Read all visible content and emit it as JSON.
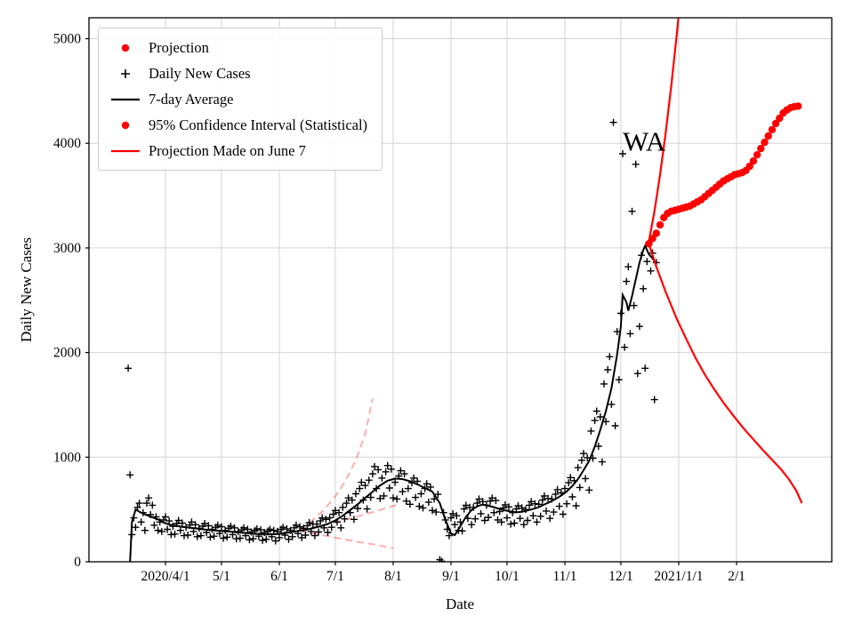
{
  "chart_data": {
    "type": "scatter",
    "xlabel": "Date",
    "ylabel": "Daily New Cases",
    "annotation": {
      "text": "WA",
      "x": "2020-12-02",
      "y": 3930
    },
    "legend": [
      {
        "label": "Projection",
        "marker": "dot",
        "color": "#ff0000"
      },
      {
        "label": "Daily New Cases",
        "marker": "plus",
        "color": "#000000"
      },
      {
        "label": "7-day Average",
        "marker": "line",
        "color": "#000000"
      },
      {
        "label": "95% Confidence Interval (Statistical)",
        "marker": "dot",
        "color": "#ff0000"
      },
      {
        "label": "Projection Made on June 7",
        "marker": "line",
        "color": "#ff0000"
      }
    ],
    "axes": {
      "x": {
        "min": "2020-02-20",
        "max": "2021-03-24",
        "ticks": [
          {
            "date": "2020-04-01",
            "label": "2020/4/1"
          },
          {
            "date": "2020-05-01",
            "label": "5/1"
          },
          {
            "date": "2020-06-01",
            "label": "6/1"
          },
          {
            "date": "2020-07-01",
            "label": "7/1"
          },
          {
            "date": "2020-08-01",
            "label": "8/1"
          },
          {
            "date": "2020-09-01",
            "label": "9/1"
          },
          {
            "date": "2020-10-01",
            "label": "10/1"
          },
          {
            "date": "2020-11-01",
            "label": "11/1"
          },
          {
            "date": "2020-12-01",
            "label": "12/1"
          },
          {
            "date": "2021-01-01",
            "label": "2021/1/1"
          },
          {
            "date": "2021-02-01",
            "label": "2/1"
          }
        ]
      },
      "y": {
        "min": 0,
        "max": 5200,
        "ticks": [
          {
            "value": 0,
            "label": "0"
          },
          {
            "value": 1000,
            "label": "1000"
          },
          {
            "value": 2000,
            "label": "2000"
          },
          {
            "value": 3000,
            "label": "3000"
          },
          {
            "value": 4000,
            "label": "4000"
          },
          {
            "value": 5000,
            "label": "5000"
          }
        ]
      }
    },
    "colors": {
      "cases": "#000000",
      "average": "#000000",
      "projection": "#ff0000",
      "ci": "#ff0000",
      "june7": "#ff0000",
      "grid": "#d4d4d4",
      "border": "#000000"
    },
    "series": {
      "daily_cases": {
        "start": "2020-03-12",
        "step_days": 1,
        "values": [
          1850,
          830,
          260,
          420,
          330,
          520,
          560,
          380,
          470,
          300,
          560,
          610,
          450,
          540,
          350,
          430,
          300,
          380,
          290,
          400,
          430,
          310,
          390,
          260,
          340,
          265,
          365,
          395,
          300,
          370,
          250,
          330,
          255,
          350,
          380,
          290,
          355,
          240,
          320,
          250,
          340,
          365,
          280,
          345,
          235,
          310,
          245,
          330,
          350,
          270,
          335,
          225,
          300,
          235,
          320,
          340,
          260,
          325,
          220,
          290,
          225,
          305,
          325,
          250,
          310,
          210,
          285,
          220,
          300,
          315,
          245,
          305,
          205,
          280,
          215,
          295,
          310,
          240,
          300,
          200,
          290,
          230,
          310,
          330,
          255,
          315,
          215,
          300,
          240,
          325,
          350,
          270,
          335,
          230,
          320,
          255,
          345,
          375,
          290,
          360,
          250,
          360,
          285,
          390,
          420,
          325,
          405,
          280,
          420,
          330,
          455,
          490,
          380,
          470,
          325,
          520,
          410,
          560,
          610,
          470,
          590,
          405,
          650,
          510,
          700,
          760,
          590,
          730,
          505,
          780,
          615,
          840,
          910,
          700,
          880,
          605,
          800,
          630,
          860,
          920,
          705,
          885,
          610,
          760,
          600,
          820,
          870,
          670,
          840,
          580,
          700,
          550,
          755,
          800,
          615,
          770,
          530,
          650,
          515,
          700,
          745,
          570,
          715,
          490,
          600,
          475,
          645,
          20,
          5,
          470,
          400,
          310,
          250,
          420,
          460,
          355,
          440,
          300,
          380,
          295,
          505,
          540,
          415,
          520,
          355,
          520,
          410,
          560,
          600,
          460,
          575,
          395,
          540,
          425,
          580,
          610,
          470,
          585,
          400,
          480,
          380,
          515,
          545,
          420,
          525,
          360,
          470,
          370,
          505,
          535,
          415,
          515,
          355,
          500,
          395,
          540,
          575,
          440,
          555,
          380,
          550,
          435,
          590,
          630,
          485,
          605,
          415,
          600,
          475,
          645,
          690,
          530,
          660,
          455,
          700,
          555,
          755,
          805,
          620,
          775,
          535,
          900,
          710,
          970,
          1035,
          795,
          995,
          685,
          1250,
          990,
          1350,
          1440,
          1105,
          1385,
          955,
          1700,
          1340,
          1835,
          1960,
          1505,
          4200,
          1300,
          2200,
          1740,
          2375,
          3900,
          2050,
          2680,
          2820,
          2180,
          3350,
          2450,
          3800,
          1800,
          2250,
          2930,
          2610,
          1850,
          2870,
          3050,
          2780,
          2950,
          1550,
          2860
        ]
      },
      "avg_7day": [
        [
          "2020-03-13",
          0
        ],
        [
          "2020-03-14",
          380
        ],
        [
          "2020-03-16",
          500
        ],
        [
          "2020-03-19",
          470
        ],
        [
          "2020-03-22",
          445
        ],
        [
          "2020-03-25",
          425
        ],
        [
          "2020-03-28",
          405
        ],
        [
          "2020-03-31",
          375
        ],
        [
          "2020-04-04",
          352
        ],
        [
          "2020-04-08",
          340
        ],
        [
          "2020-04-12",
          330
        ],
        [
          "2020-04-16",
          322
        ],
        [
          "2020-04-20",
          312
        ],
        [
          "2020-04-24",
          305
        ],
        [
          "2020-04-28",
          298
        ],
        [
          "2020-05-02",
          292
        ],
        [
          "2020-05-06",
          288
        ],
        [
          "2020-05-10",
          280
        ],
        [
          "2020-05-14",
          275
        ],
        [
          "2020-05-18",
          268
        ],
        [
          "2020-05-22",
          264
        ],
        [
          "2020-05-26",
          262
        ],
        [
          "2020-05-30",
          264
        ],
        [
          "2020-06-03",
          272
        ],
        [
          "2020-06-07",
          282
        ],
        [
          "2020-06-11",
          295
        ],
        [
          "2020-06-15",
          305
        ],
        [
          "2020-06-19",
          322
        ],
        [
          "2020-06-23",
          340
        ],
        [
          "2020-06-27",
          362
        ],
        [
          "2020-07-01",
          395
        ],
        [
          "2020-07-05",
          440
        ],
        [
          "2020-07-09",
          495
        ],
        [
          "2020-07-13",
          550
        ],
        [
          "2020-07-17",
          610
        ],
        [
          "2020-07-21",
          670
        ],
        [
          "2020-07-25",
          730
        ],
        [
          "2020-07-29",
          775
        ],
        [
          "2020-08-02",
          795
        ],
        [
          "2020-08-06",
          790
        ],
        [
          "2020-08-10",
          770
        ],
        [
          "2020-08-14",
          740
        ],
        [
          "2020-08-18",
          705
        ],
        [
          "2020-08-22",
          670
        ],
        [
          "2020-08-26",
          560
        ],
        [
          "2020-08-29",
          400
        ],
        [
          "2020-09-01",
          270
        ],
        [
          "2020-09-03",
          255
        ],
        [
          "2020-09-06",
          340
        ],
        [
          "2020-09-09",
          430
        ],
        [
          "2020-09-12",
          495
        ],
        [
          "2020-09-15",
          530
        ],
        [
          "2020-09-18",
          548
        ],
        [
          "2020-09-21",
          535
        ],
        [
          "2020-09-24",
          522
        ],
        [
          "2020-09-27",
          505
        ],
        [
          "2020-09-30",
          492
        ],
        [
          "2020-10-03",
          480
        ],
        [
          "2020-10-06",
          472
        ],
        [
          "2020-10-09",
          478
        ],
        [
          "2020-10-12",
          490
        ],
        [
          "2020-10-15",
          505
        ],
        [
          "2020-10-18",
          522
        ],
        [
          "2020-10-21",
          548
        ],
        [
          "2020-10-24",
          572
        ],
        [
          "2020-10-27",
          600
        ],
        [
          "2020-10-30",
          632
        ],
        [
          "2020-11-02",
          672
        ],
        [
          "2020-11-05",
          725
        ],
        [
          "2020-11-08",
          790
        ],
        [
          "2020-11-11",
          875
        ],
        [
          "2020-11-14",
          965
        ],
        [
          "2020-11-17",
          1100
        ],
        [
          "2020-11-20",
          1260
        ],
        [
          "2020-11-23",
          1440
        ],
        [
          "2020-11-26",
          1660
        ],
        [
          "2020-11-29",
          1980
        ],
        [
          "2020-12-01",
          2250
        ],
        [
          "2020-12-02",
          2550
        ],
        [
          "2020-12-04",
          2480
        ],
        [
          "2020-12-05",
          2400
        ],
        [
          "2020-12-07",
          2540
        ],
        [
          "2020-12-09",
          2700
        ],
        [
          "2020-12-11",
          2860
        ],
        [
          "2020-12-13",
          2980
        ],
        [
          "2020-12-14",
          3020
        ],
        [
          "2020-12-16",
          2940
        ],
        [
          "2020-12-18",
          2900
        ],
        [
          "2020-12-19",
          2870
        ]
      ],
      "projection": {
        "start": "2020-12-16",
        "step_days": 2,
        "values": [
          3040,
          3090,
          3140,
          3220,
          3290,
          3330,
          3350,
          3360,
          3370,
          3380,
          3390,
          3400,
          3420,
          3440,
          3460,
          3490,
          3520,
          3550,
          3580,
          3610,
          3640,
          3660,
          3680,
          3700,
          3710,
          3720,
          3740,
          3780,
          3830,
          3890,
          3950,
          4010,
          4070,
          4130,
          4190,
          4240,
          4290,
          4320,
          4340,
          4350,
          4355
        ]
      },
      "ci_upper": [
        [
          "2020-12-16",
          3060
        ],
        [
          "2020-12-19",
          3350
        ],
        [
          "2020-12-22",
          3700
        ],
        [
          "2020-12-25",
          4100
        ],
        [
          "2020-12-28",
          4550
        ],
        [
          "2020-12-31",
          5050
        ],
        [
          "2021-01-03",
          5600
        ]
      ],
      "ci_lower": [
        [
          "2020-12-16",
          3040
        ],
        [
          "2020-12-20",
          2820
        ],
        [
          "2020-12-25",
          2580
        ],
        [
          "2020-12-31",
          2320
        ],
        [
          "2021-01-05",
          2130
        ],
        [
          "2021-01-10",
          1950
        ],
        [
          "2021-01-15",
          1790
        ],
        [
          "2021-01-20",
          1650
        ],
        [
          "2021-01-25",
          1520
        ],
        [
          "2021-01-31",
          1380
        ],
        [
          "2021-02-05",
          1270
        ],
        [
          "2021-02-10",
          1170
        ],
        [
          "2021-02-15",
          1070
        ],
        [
          "2021-02-20",
          975
        ],
        [
          "2021-02-25",
          880
        ],
        [
          "2021-03-01",
          790
        ],
        [
          "2021-03-05",
          680
        ],
        [
          "2021-03-08",
          560
        ]
      ],
      "june7_upper": [
        [
          "2020-06-12",
          310
        ],
        [
          "2020-06-18",
          385
        ],
        [
          "2020-06-24",
          480
        ],
        [
          "2020-06-30",
          600
        ],
        [
          "2020-07-06",
          760
        ],
        [
          "2020-07-12",
          970
        ],
        [
          "2020-07-17",
          1220
        ],
        [
          "2020-07-21",
          1560
        ]
      ],
      "june7_center": [
        [
          "2020-06-12",
          300
        ],
        [
          "2020-06-26",
          355
        ],
        [
          "2020-07-10",
          420
        ],
        [
          "2020-07-24",
          490
        ],
        [
          "2020-08-03",
          545
        ]
      ],
      "june7_lower": [
        [
          "2020-06-12",
          295
        ],
        [
          "2020-06-26",
          248
        ],
        [
          "2020-07-10",
          200
        ],
        [
          "2020-07-24",
          158
        ],
        [
          "2020-08-01",
          128
        ]
      ]
    }
  }
}
